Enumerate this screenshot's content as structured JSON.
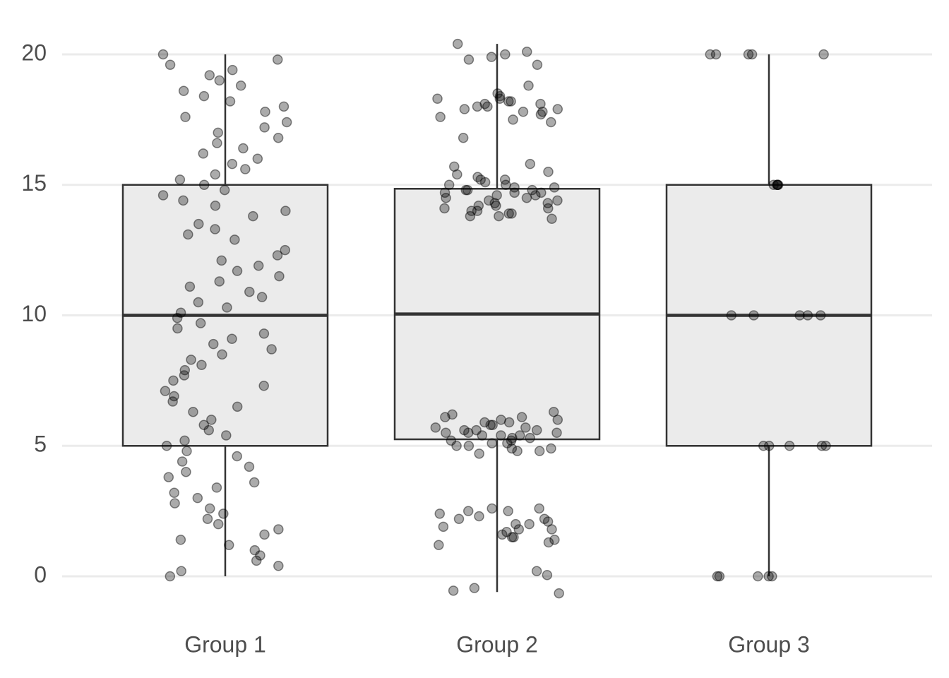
{
  "chart_data": {
    "type": "box",
    "categories": [
      "Group 1",
      "Group 2",
      "Group 3"
    ],
    "boxes": [
      {
        "min": 0,
        "q1": 5,
        "median": 10,
        "q3": 15,
        "max": 20
      },
      {
        "min": -0.6,
        "q1": 5.25,
        "median": 10.05,
        "q3": 14.85,
        "max": 20.4
      },
      {
        "min": 0,
        "q1": 5,
        "median": 10,
        "q3": 15,
        "max": 20
      }
    ],
    "points": [
      [
        20.0,
        19.8,
        19.6,
        19.4,
        19.2,
        19.0,
        18.8,
        18.6,
        18.4,
        18.2,
        18.0,
        17.8,
        17.6,
        17.4,
        17.2,
        17.0,
        16.8,
        16.6,
        16.4,
        16.2,
        16.0,
        15.8,
        15.6,
        15.4,
        15.2,
        15.0,
        14.8,
        14.6,
        14.4,
        14.2,
        14.0,
        13.8,
        13.5,
        13.3,
        13.1,
        12.9,
        12.5,
        12.3,
        12.1,
        11.9,
        11.7,
        11.5,
        11.3,
        11.1,
        10.9,
        10.7,
        10.5,
        10.3,
        10.1,
        9.9,
        9.7,
        9.5,
        9.3,
        9.1,
        8.9,
        8.7,
        8.5,
        8.3,
        8.1,
        7.9,
        7.7,
        7.5,
        7.3,
        7.1,
        6.9,
        6.7,
        6.5,
        6.3,
        6.0,
        5.8,
        5.6,
        5.4,
        5.2,
        5.0,
        4.8,
        4.6,
        4.4,
        4.2,
        4.0,
        3.8,
        3.6,
        3.4,
        3.2,
        3.0,
        2.8,
        2.6,
        2.4,
        2.2,
        2.0,
        1.8,
        1.6,
        1.4,
        1.2,
        1.0,
        0.8,
        0.6,
        0.4,
        0.2,
        0.0
      ],
      [
        20.4,
        20.1,
        20.0,
        19.9,
        19.8,
        19.6,
        18.8,
        18.5,
        18.4,
        18.3,
        18.3,
        18.2,
        18.2,
        18.1,
        18.1,
        18.0,
        18.0,
        17.9,
        17.9,
        17.8,
        17.8,
        17.7,
        17.6,
        17.5,
        17.4,
        16.8,
        15.8,
        15.7,
        15.5,
        15.4,
        15.3,
        15.2,
        15.2,
        15.1,
        15.0,
        15.0,
        14.9,
        14.9,
        14.8,
        14.8,
        14.8,
        14.7,
        14.7,
        14.7,
        14.6,
        14.6,
        14.5,
        14.5,
        14.4,
        14.4,
        14.3,
        14.3,
        14.2,
        14.2,
        14.1,
        14.1,
        14.0,
        14.0,
        13.9,
        13.9,
        13.8,
        13.8,
        13.7,
        6.3,
        6.2,
        6.1,
        6.1,
        6.0,
        6.0,
        5.9,
        5.9,
        5.8,
        5.8,
        5.7,
        5.7,
        5.6,
        5.6,
        5.6,
        5.5,
        5.5,
        5.5,
        5.4,
        5.4,
        5.4,
        5.3,
        5.3,
        5.2,
        5.2,
        5.1,
        5.1,
        5.0,
        5.0,
        4.9,
        4.9,
        4.8,
        4.8,
        4.7,
        2.6,
        2.6,
        2.5,
        2.5,
        2.4,
        2.3,
        2.2,
        2.2,
        2.1,
        2.0,
        2.0,
        1.9,
        1.8,
        1.8,
        1.7,
        1.6,
        1.5,
        1.5,
        1.4,
        1.3,
        1.2,
        0.2,
        0.05,
        -0.45,
        -0.55,
        -0.65
      ],
      [
        20,
        20,
        20,
        20,
        20,
        15,
        15,
        15,
        15,
        15,
        10,
        10,
        10,
        10,
        10,
        5,
        5,
        5,
        5,
        5,
        0,
        0,
        0,
        0,
        0
      ]
    ],
    "ylim": [
      -1,
      21
    ],
    "yticks": [
      0,
      5,
      10,
      15,
      20
    ],
    "grid": true,
    "box_color": "#ebebeb",
    "point_color": "#000000"
  }
}
